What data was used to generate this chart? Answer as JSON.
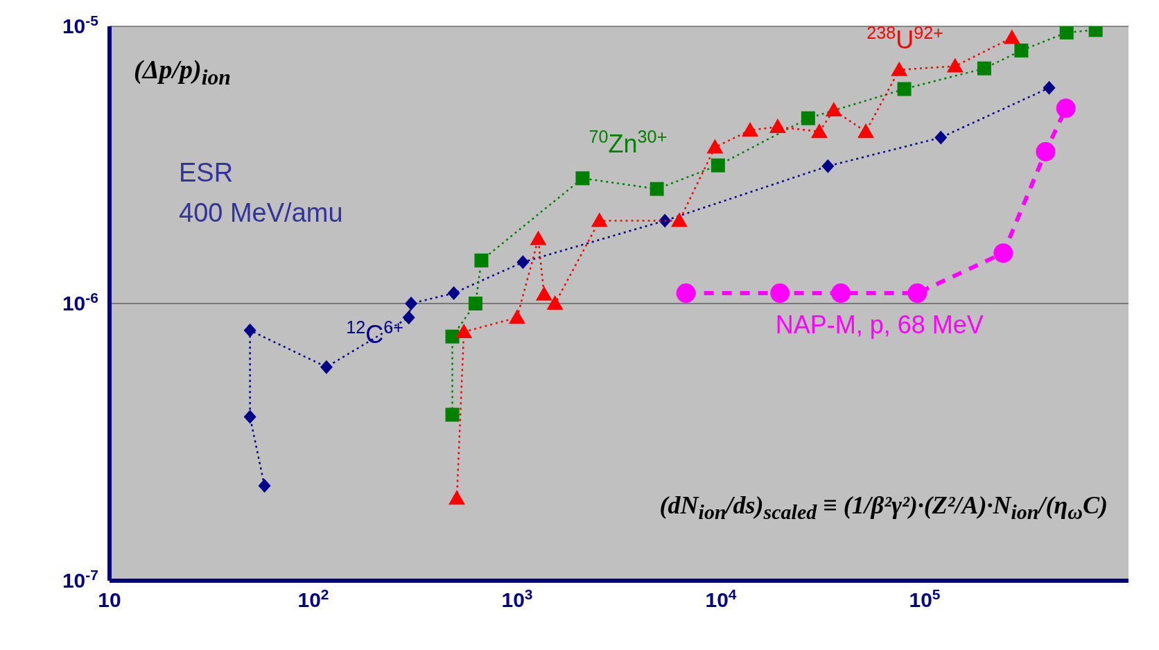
{
  "chart_data": {
    "type": "line",
    "xlabel": "(dN$_{ion}$/ds)$_{scaled}$ ≡ (1/β²γ²)·(Z²/A)·N$_{ion}$/(η$_{ω}$C)",
    "ylabel": "(Δp/p)$_{ion}$",
    "annotations": [
      "ESR",
      "400 MeV/amu"
    ],
    "log": "xy",
    "grid": "y",
    "legend": false,
    "xlim": [
      10,
      1000000
    ],
    "xticks": [
      10,
      {
        "value": 100,
        "label": "10$^{2}$"
      },
      {
        "value": 1000,
        "label": "10$^{3}$"
      },
      {
        "value": 10000,
        "label": "10$^{4}$"
      },
      {
        "value": 100000,
        "label": "10$^{5}$"
      },
      {
        "value": 1000000,
        "label": null
      }
    ],
    "ylim": [
      1e-07,
      1e-05
    ],
    "yticks": [
      {
        "value": 1e-07,
        "label": "10$^{-7}$"
      },
      {
        "value": 1e-06,
        "label": "10$^{-6}$"
      },
      {
        "value": 1e-05,
        "label": "10$^{-5}$"
      }
    ],
    "series": [
      {
        "name": "$^{12}$C$^{6+}$",
        "color": "#00008b",
        "marker": "diamond",
        "line_style": "dotted",
        "x": [
          57.6,
          48.9,
          48.9,
          116,
          294,
          302,
          489,
          1068,
          5310,
          33500,
          120000,
          408000
        ],
        "values": [
          2.2e-07,
          3.9e-07,
          8e-07,
          5.9e-07,
          8.9e-07,
          1e-06,
          1.09e-06,
          1.41e-06,
          1.99e-06,
          3.13e-06,
          3.97e-06,
          6e-06
        ]
      },
      {
        "name": "$^{70}$Zn$^{30+}$",
        "color": "#008000",
        "marker": "square",
        "line_style": "dotted",
        "x": [
          481,
          481,
          625,
          668,
          2095,
          4850,
          9680,
          26800,
          79400,
          196000,
          298000,
          497000,
          690000
        ],
        "values": [
          3.97e-07,
          7.6e-07,
          1e-06,
          1.43e-06,
          2.83e-06,
          2.59e-06,
          3.15e-06,
          4.66e-06,
          5.94e-06,
          7.05e-06,
          8.18e-06,
          9.5e-06,
          9.7e-06
        ]
      },
      {
        "name": "$^{238}$U$^{92+}$",
        "color": "#ff0000",
        "marker": "triangle",
        "line_style": "dotted",
        "x": [
          506,
          548,
          1000,
          1270,
          1356,
          1534,
          2535,
          6250,
          9350,
          13900,
          19000,
          30400,
          35800,
          51400,
          75000,
          141000,
          268000
        ],
        "values": [
          1.98e-07,
          7.9e-07,
          8.9e-07,
          1.71e-06,
          1.08e-06,
          1e-06,
          1.99e-06,
          1.99e-06,
          3.66e-06,
          4.22e-06,
          4.34e-06,
          4.17e-06,
          4.98e-06,
          4.17e-06,
          6.97e-06,
          7.18e-06,
          9.1e-06
        ]
      },
      {
        "name": "NAP-M, p, 68 MeV",
        "color": "#ff00ff",
        "marker": "circle",
        "line_style": "dashed",
        "x": [
          6740,
          19500,
          38800,
          92000,
          243000,
          392000,
          493000
        ],
        "values": [
          1.09e-06,
          1.09e-06,
          1.09e-06,
          1.09e-06,
          1.52e-06,
          3.53e-06,
          5.06e-06
        ]
      }
    ]
  }
}
